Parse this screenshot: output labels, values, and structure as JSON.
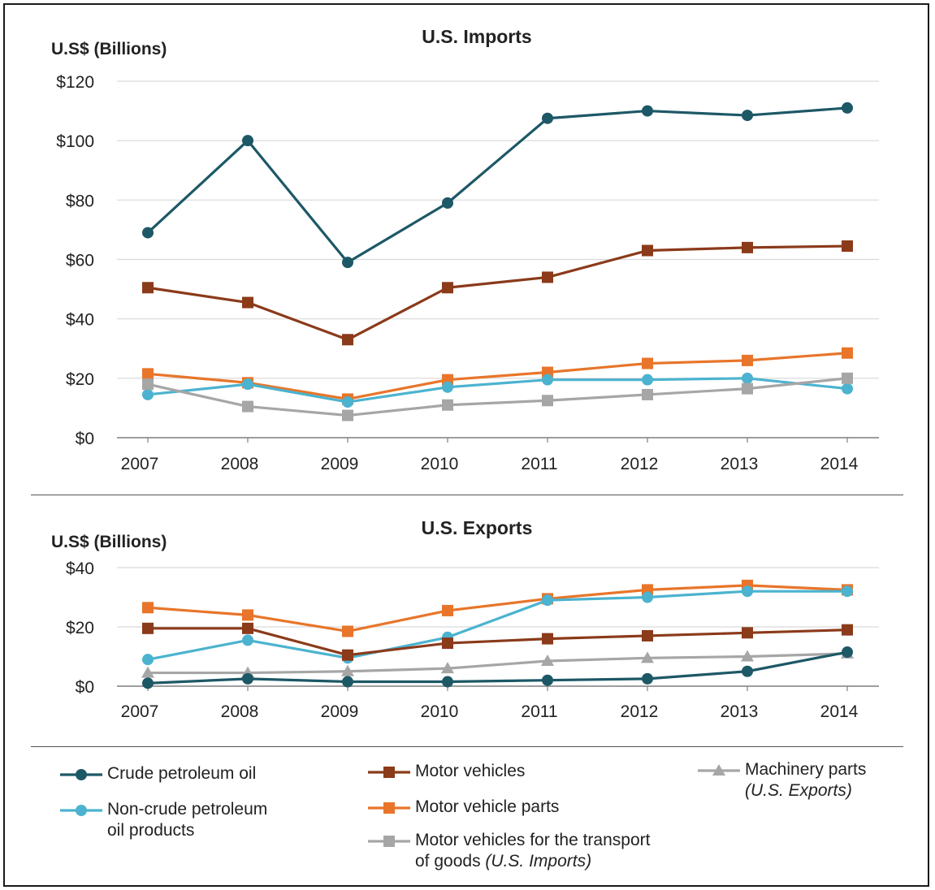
{
  "chart_data": [
    {
      "type": "line",
      "title": "U.S. Imports",
      "ylabel": "U.S$ (Billions)",
      "x": [
        "2007",
        "2008",
        "2009",
        "2010",
        "2011",
        "2012",
        "2013",
        "2014"
      ],
      "ylim": [
        0,
        120
      ],
      "yticks": [
        "$0",
        "$20",
        "$40",
        "$60",
        "$80",
        "$100",
        "$120"
      ],
      "grid": true,
      "series": [
        {
          "name": "Crude petroleum oil",
          "color": "#1d5866",
          "marker": "circle",
          "values": [
            69,
            100,
            59,
            79,
            107.5,
            110,
            108.5,
            111
          ]
        },
        {
          "name": "Motor vehicles",
          "color": "#8b3a1a",
          "marker": "square",
          "values": [
            50.5,
            45.5,
            33,
            50.5,
            54,
            63,
            64,
            64.5
          ]
        },
        {
          "name": "Motor vehicle parts",
          "color": "#e8752a",
          "marker": "square",
          "values": [
            21.5,
            18.5,
            13,
            19.5,
            22,
            25,
            26,
            28.5
          ]
        },
        {
          "name": "Non-crude petroleum oil products",
          "color": "#4bb3cf",
          "marker": "circle",
          "values": [
            14.5,
            18,
            12,
            17,
            19.5,
            19.5,
            20,
            16.5
          ]
        },
        {
          "name": "Motor vehicles for the transport of goods",
          "color": "#a6a6a6",
          "marker": "square",
          "values": [
            18,
            10.5,
            7.5,
            11,
            12.5,
            14.5,
            16.5,
            20
          ]
        }
      ]
    },
    {
      "type": "line",
      "title": "U.S. Exports",
      "ylabel": "U.S$ (Billions)",
      "x": [
        "2007",
        "2008",
        "2009",
        "2010",
        "2011",
        "2012",
        "2013",
        "2014"
      ],
      "ylim": [
        0,
        40
      ],
      "yticks": [
        "$0",
        "$20",
        "$40"
      ],
      "grid": true,
      "series": [
        {
          "name": "Motor vehicle parts",
          "color": "#e8752a",
          "marker": "square",
          "values": [
            26.5,
            24,
            18.5,
            25.5,
            29.5,
            32.5,
            34,
            32.5
          ]
        },
        {
          "name": "Non-crude petroleum oil products",
          "color": "#4bb3cf",
          "marker": "circle",
          "values": [
            9,
            15.5,
            9.5,
            16.5,
            29,
            30,
            32,
            32
          ]
        },
        {
          "name": "Motor vehicles",
          "color": "#8b3a1a",
          "marker": "square",
          "values": [
            19.5,
            19.5,
            10.5,
            14.5,
            16,
            17,
            18,
            19
          ]
        },
        {
          "name": "Machinery parts",
          "color": "#a6a6a6",
          "marker": "triangle",
          "values": [
            4.5,
            4.5,
            5,
            6,
            8.5,
            9.5,
            10,
            11
          ]
        },
        {
          "name": "Crude petroleum oil",
          "color": "#1d5866",
          "marker": "circle",
          "values": [
            1,
            2.5,
            1.5,
            1.5,
            2,
            2.5,
            5,
            11.5
          ]
        }
      ]
    }
  ],
  "legend": [
    {
      "text": "Crude petroleum oil",
      "note": "",
      "color": "#1d5866",
      "marker": "circle"
    },
    {
      "text": "Non-crude petroleum",
      "text2": "oil products",
      "note": "",
      "color": "#4bb3cf",
      "marker": "circle"
    },
    {
      "text": "Motor vehicles",
      "note": "",
      "color": "#8b3a1a",
      "marker": "square"
    },
    {
      "text": "Motor vehicle parts",
      "note": "",
      "color": "#e8752a",
      "marker": "square"
    },
    {
      "text": "Motor vehicles for the transport",
      "text2": "of goods",
      "note": "(U.S. Imports)",
      "color": "#a6a6a6",
      "marker": "square"
    },
    {
      "text": "Machinery parts",
      "note": "(U.S. Exports)",
      "color": "#a6a6a6",
      "marker": "triangle"
    }
  ]
}
